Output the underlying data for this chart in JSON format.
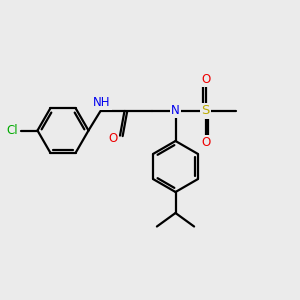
{
  "bg_color": "#ebebeb",
  "atom_colors": {
    "C": "#000000",
    "N": "#0000ee",
    "O": "#ee0000",
    "S": "#bbaa00",
    "Cl": "#00aa00",
    "H": "#888888"
  },
  "bond_width": 1.6,
  "font_size": 8.5,
  "fig_size": [
    3.0,
    3.0
  ],
  "dpi": 100
}
